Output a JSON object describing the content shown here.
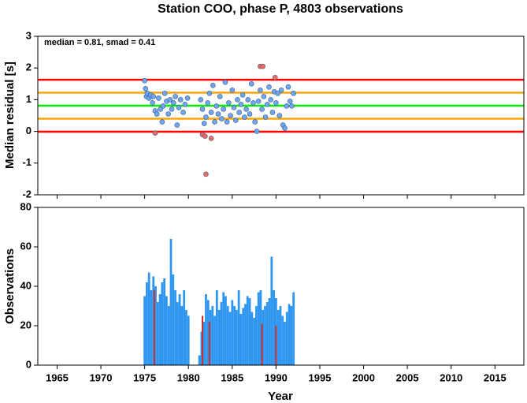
{
  "chart_data": [
    {
      "type": "scatter",
      "title": "Station COO, phase P, 4803 observations",
      "ylabel": "Median residual [s]",
      "annotation": "median = 0.81, smad = 0.41",
      "xlim": [
        1962.8,
        2018.3
      ],
      "ylim": [
        -2,
        3
      ],
      "yticks": [
        -2,
        -1,
        0,
        1,
        2,
        3
      ],
      "reference_lines": [
        {
          "value": 1.63,
          "color": "#ff0000"
        },
        {
          "value": 1.22,
          "color": "#ffa500"
        },
        {
          "value": 0.81,
          "color": "#00ee00"
        },
        {
          "value": 0.4,
          "color": "#ffa500"
        },
        {
          "value": -0.01,
          "color": "#ff0000"
        }
      ],
      "series": [
        {
          "color": "#6ea6f0",
          "x": [
            1975.0,
            1975.1,
            1975.2,
            1975.3,
            1975.5,
            1975.7,
            1975.9,
            1976.0,
            1976.2,
            1976.4,
            1976.6,
            1976.8,
            1977.0,
            1977.1,
            1977.3,
            1977.5,
            1977.7,
            1977.9,
            1978.1,
            1978.3,
            1978.5,
            1978.7,
            1978.9,
            1979.1,
            1979.4,
            1979.6,
            1979.9,
            1981.4,
            1981.6,
            1981.8,
            1982.0,
            1982.2,
            1982.4,
            1982.6,
            1982.8,
            1983.0,
            1983.2,
            1983.4,
            1983.6,
            1983.8,
            1984.0,
            1984.2,
            1984.4,
            1984.6,
            1984.8,
            1985.0,
            1985.2,
            1985.4,
            1985.6,
            1985.8,
            1986.0,
            1986.2,
            1986.4,
            1986.6,
            1986.8,
            1987.0,
            1987.2,
            1987.4,
            1987.6,
            1987.8,
            1988.0,
            1988.2,
            1988.4,
            1988.6,
            1988.8,
            1989.0,
            1989.2,
            1989.4,
            1989.6,
            1989.8,
            1990.0,
            1990.2,
            1990.4,
            1990.6,
            1990.8,
            1991.0,
            1991.2,
            1991.4,
            1991.6,
            1991.8,
            1992.0
          ],
          "values": [
            1.6,
            1.35,
            1.1,
            1.2,
            1.05,
            1.15,
            0.9,
            1.1,
            0.65,
            0.55,
            1.05,
            0.7,
            0.3,
            0.8,
            1.2,
            0.95,
            0.55,
            1.0,
            0.7,
            0.9,
            1.1,
            0.2,
            0.75,
            1.0,
            0.6,
            0.85,
            1.05,
            1.0,
            0.7,
            0.25,
            0.45,
            0.9,
            1.2,
            0.6,
            1.45,
            0.3,
            0.8,
            0.55,
            1.1,
            0.4,
            0.7,
            1.55,
            0.3,
            0.9,
            0.5,
            1.3,
            0.75,
            0.35,
            1.0,
            0.6,
            0.85,
            1.15,
            0.45,
            0.7,
            1.0,
            0.55,
            1.5,
            0.9,
            0.3,
            0.0,
            0.95,
            1.3,
            0.7,
            1.1,
            0.45,
            0.85,
            1.4,
            1.0,
            0.6,
            1.25,
            0.9,
            1.2,
            0.5,
            1.3,
            0.2,
            0.1,
            0.8,
            1.4,
            0.95,
            0.8,
            1.2
          ]
        },
        {
          "color": "#f26a5e",
          "x": [
            1976.2,
            1981.6,
            1981.9,
            1982.0,
            1982.6,
            1988.2,
            1988.5,
            1989.9
          ],
          "values": [
            -0.05,
            -0.1,
            -0.15,
            -1.35,
            -0.22,
            2.05,
            2.05,
            1.7
          ]
        }
      ]
    },
    {
      "type": "bar",
      "ylabel": "Observations",
      "xlabel": "Year",
      "xlim": [
        1962.8,
        2018.3
      ],
      "ylim": [
        0,
        80
      ],
      "yticks": [
        0,
        20,
        40,
        60,
        80
      ],
      "xticks": [
        1965,
        1970,
        1975,
        1980,
        1985,
        1990,
        1995,
        2000,
        2005,
        2010,
        2015
      ],
      "series": [
        {
          "color": "#2f96f0",
          "x": [
            1975.0,
            1975.25,
            1975.5,
            1975.75,
            1976.0,
            1976.25,
            1976.5,
            1976.75,
            1977.0,
            1977.25,
            1977.5,
            1977.75,
            1978.0,
            1978.25,
            1978.5,
            1978.75,
            1979.0,
            1979.25,
            1979.5,
            1979.75,
            1980.0,
            1980.25,
            1980.5,
            1980.75,
            1981.0,
            1981.25,
            1981.5,
            1981.75,
            1982.0,
            1982.25,
            1982.5,
            1982.75,
            1983.0,
            1983.25,
            1983.5,
            1983.75,
            1984.0,
            1984.25,
            1984.5,
            1984.75,
            1985.0,
            1985.25,
            1985.5,
            1985.75,
            1986.0,
            1986.25,
            1986.5,
            1986.75,
            1987.0,
            1987.25,
            1987.5,
            1987.75,
            1988.0,
            1988.25,
            1988.5,
            1988.75,
            1989.0,
            1989.25,
            1989.5,
            1989.75,
            1990.0,
            1990.25,
            1990.5,
            1990.75,
            1991.0,
            1991.25,
            1991.5,
            1991.75,
            1992.0
          ],
          "values": [
            35,
            42,
            47,
            38,
            45,
            40,
            32,
            36,
            42,
            44,
            35,
            30,
            64,
            46,
            38,
            32,
            36,
            30,
            38,
            28,
            25,
            0,
            0,
            0,
            0,
            5,
            17,
            22,
            36,
            33,
            28,
            30,
            25,
            38,
            28,
            32,
            37,
            35,
            30,
            27,
            33,
            30,
            28,
            38,
            26,
            29,
            31,
            35,
            34,
            27,
            24,
            30,
            37,
            38,
            28,
            30,
            32,
            34,
            55,
            38,
            34,
            28,
            30,
            25,
            22,
            27,
            31,
            30,
            37
          ]
        },
        {
          "color": "#c8302f",
          "x": [
            1976.1,
            1981.6,
            1982.4,
            1988.4,
            1990.0
          ],
          "values": [
            38,
            25,
            22,
            21,
            20
          ]
        }
      ]
    }
  ]
}
